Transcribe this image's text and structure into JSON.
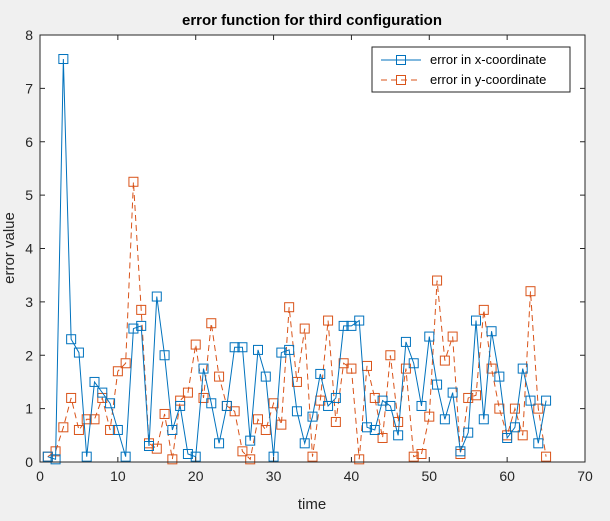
{
  "chart_data": {
    "type": "line",
    "title": "error function for third configuration",
    "xlabel": "time",
    "ylabel": "error value",
    "xlim": [
      0,
      70
    ],
    "ylim": [
      0,
      8
    ],
    "xticks": [
      0,
      10,
      20,
      30,
      40,
      50,
      60,
      70
    ],
    "yticks": [
      0,
      1,
      2,
      3,
      4,
      5,
      6,
      7,
      8
    ],
    "grid": false,
    "legend_position": "top-right",
    "x": [
      1,
      2,
      3,
      4,
      5,
      6,
      7,
      8,
      9,
      10,
      11,
      12,
      13,
      14,
      15,
      16,
      17,
      18,
      19,
      20,
      21,
      22,
      23,
      24,
      25,
      26,
      27,
      28,
      29,
      30,
      31,
      32,
      33,
      34,
      35,
      36,
      37,
      38,
      39,
      40,
      41,
      42,
      43,
      44,
      45,
      46,
      47,
      48,
      49,
      50,
      51,
      52,
      53,
      54,
      55,
      56,
      57,
      58,
      59,
      60,
      61,
      62,
      63,
      64,
      65
    ],
    "series": [
      {
        "name": "error in x-coordinate",
        "color": "#0072bd",
        "line_style": "solid",
        "marker": "square",
        "values": [
          0.1,
          0.05,
          7.55,
          2.3,
          2.05,
          0.1,
          1.5,
          1.3,
          1.1,
          0.6,
          0.1,
          2.5,
          2.55,
          0.3,
          3.1,
          2.0,
          0.6,
          1.05,
          0.15,
          0.1,
          1.75,
          1.1,
          0.35,
          1.05,
          2.15,
          2.15,
          0.4,
          2.1,
          1.6,
          0.1,
          2.05,
          2.1,
          0.95,
          0.35,
          0.85,
          1.65,
          1.05,
          1.2,
          2.55,
          2.55,
          2.65,
          0.65,
          0.6,
          1.15,
          1.05,
          0.5,
          2.25,
          1.85,
          1.05,
          2.35,
          1.45,
          0.8,
          1.3,
          0.2,
          0.55,
          2.65,
          0.8,
          2.45,
          1.6,
          0.45,
          0.65,
          1.75,
          1.15,
          0.35,
          1.15
        ]
      },
      {
        "name": "error in y-coordinate",
        "color": "#d95319",
        "line_style": "dashed",
        "marker": "square",
        "values": [
          0.1,
          0.2,
          0.65,
          1.2,
          0.6,
          0.8,
          0.8,
          1.2,
          0.6,
          1.7,
          1.85,
          5.25,
          2.85,
          0.35,
          0.25,
          0.9,
          0.05,
          1.15,
          1.3,
          2.2,
          1.2,
          2.6,
          1.6,
          1.05,
          0.95,
          0.2,
          0.05,
          0.8,
          0.6,
          1.1,
          0.7,
          2.9,
          1.5,
          2.5,
          0.1,
          1.15,
          2.65,
          0.75,
          1.85,
          1.75,
          0.05,
          1.8,
          1.2,
          0.45,
          2.0,
          0.75,
          1.75,
          0.1,
          0.15,
          0.85,
          3.4,
          1.9,
          2.35,
          0.15,
          1.2,
          1.25,
          2.85,
          1.75,
          1.0,
          0.5,
          1.0,
          0.5,
          3.2,
          1.0,
          0.1
        ]
      }
    ]
  }
}
